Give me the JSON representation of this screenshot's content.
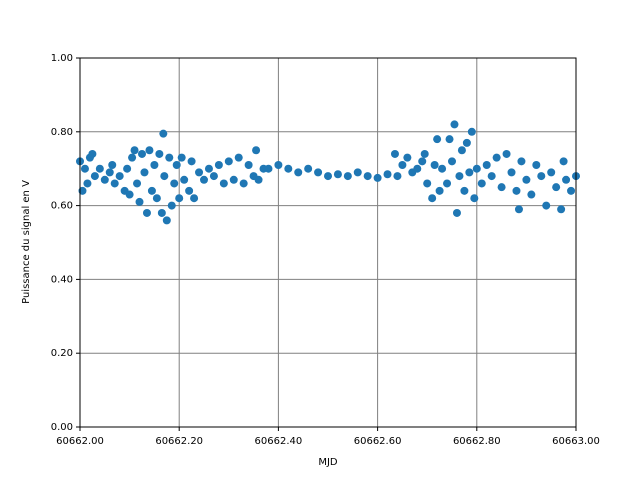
{
  "chart_data": {
    "type": "scatter",
    "xlabel": "MJD",
    "ylabel": "Puissance du signal en V",
    "color": "#1f77b4",
    "grid": true,
    "xlim": [
      60662.0,
      60663.0
    ],
    "ylim": [
      0,
      1.0
    ],
    "xticks": [
      {
        "value": 60662.0,
        "label": "60662.00"
      },
      {
        "value": 60662.2,
        "label": "60662.20"
      },
      {
        "value": 60662.4,
        "label": "60662.40"
      },
      {
        "value": 60662.6,
        "label": "60662.60"
      },
      {
        "value": 60662.8,
        "label": "60662.80"
      },
      {
        "value": 60663.0,
        "label": "60663.00"
      }
    ],
    "yticks": [
      {
        "value": 0,
        "label": "0.00"
      },
      {
        "value": 0.2,
        "label": "0.20"
      },
      {
        "value": 0.4,
        "label": "0.40"
      },
      {
        "value": 0.6,
        "label": "0.60"
      },
      {
        "value": 0.8,
        "label": "0.80"
      },
      {
        "value": 1.0,
        "label": "1.00"
      }
    ],
    "x": [
      60662.0,
      60662.005,
      60662.01,
      60662.015,
      60662.02,
      60662.025,
      60662.03,
      60662.04,
      60662.05,
      60662.06,
      60662.065,
      60662.07,
      60662.08,
      60662.09,
      60662.095,
      60662.1,
      60662.105,
      60662.11,
      60662.115,
      60662.12,
      60662.125,
      60662.13,
      60662.135,
      60662.14,
      60662.145,
      60662.15,
      60662.155,
      60662.16,
      60662.165,
      60662.168,
      60662.17,
      60662.175,
      60662.18,
      60662.185,
      60662.19,
      60662.195,
      60662.2,
      60662.205,
      60662.21,
      60662.22,
      60662.225,
      60662.23,
      60662.24,
      60662.25,
      60662.26,
      60662.27,
      60662.28,
      60662.29,
      60662.3,
      60662.31,
      60662.32,
      60662.33,
      60662.34,
      60662.35,
      60662.355,
      60662.36,
      60662.37,
      60662.38,
      60662.4,
      60662.42,
      60662.44,
      60662.46,
      60662.48,
      60662.5,
      60662.52,
      60662.54,
      60662.56,
      60662.58,
      60662.6,
      60662.62,
      60662.635,
      60662.64,
      60662.65,
      60662.66,
      60662.67,
      60662.68,
      60662.69,
      60662.695,
      60662.7,
      60662.71,
      60662.715,
      60662.72,
      60662.725,
      60662.73,
      60662.74,
      60662.745,
      60662.75,
      60662.755,
      60662.76,
      60662.765,
      60662.77,
      60662.775,
      60662.78,
      60662.785,
      60662.79,
      60662.795,
      60662.8,
      60662.81,
      60662.82,
      60662.83,
      60662.84,
      60662.85,
      60662.86,
      60662.87,
      60662.88,
      60662.885,
      60662.89,
      60662.9,
      60662.91,
      60662.92,
      60662.93,
      60662.94,
      60662.95,
      60662.96,
      60662.97,
      60662.975,
      60662.98,
      60662.99,
      60663.0
    ],
    "values": [
      0.72,
      0.64,
      0.7,
      0.66,
      0.73,
      0.74,
      0.68,
      0.7,
      0.67,
      0.69,
      0.71,
      0.66,
      0.68,
      0.64,
      0.7,
      0.63,
      0.73,
      0.75,
      0.66,
      0.61,
      0.74,
      0.69,
      0.58,
      0.75,
      0.64,
      0.71,
      0.62,
      0.74,
      0.58,
      0.795,
      0.68,
      0.56,
      0.73,
      0.6,
      0.66,
      0.71,
      0.62,
      0.73,
      0.67,
      0.64,
      0.72,
      0.62,
      0.69,
      0.67,
      0.7,
      0.68,
      0.71,
      0.66,
      0.72,
      0.67,
      0.73,
      0.66,
      0.71,
      0.68,
      0.75,
      0.67,
      0.7,
      0.7,
      0.71,
      0.7,
      0.69,
      0.7,
      0.69,
      0.68,
      0.685,
      0.68,
      0.69,
      0.68,
      0.675,
      0.685,
      0.74,
      0.68,
      0.71,
      0.73,
      0.69,
      0.7,
      0.72,
      0.74,
      0.66,
      0.62,
      0.71,
      0.78,
      0.64,
      0.7,
      0.66,
      0.78,
      0.72,
      0.82,
      0.58,
      0.68,
      0.75,
      0.64,
      0.77,
      0.69,
      0.8,
      0.62,
      0.7,
      0.66,
      0.71,
      0.68,
      0.73,
      0.65,
      0.74,
      0.69,
      0.64,
      0.59,
      0.72,
      0.67,
      0.63,
      0.71,
      0.68,
      0.6,
      0.69,
      0.65,
      0.59,
      0.72,
      0.67,
      0.64,
      0.68
    ]
  }
}
